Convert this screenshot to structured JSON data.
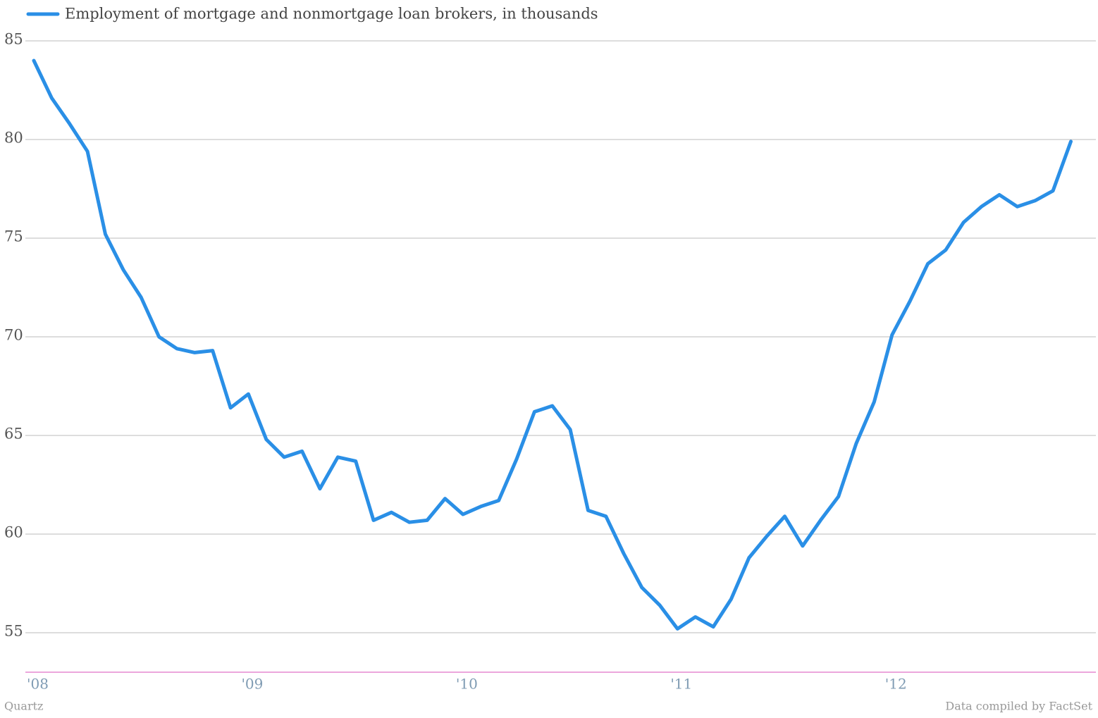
{
  "chart_data": {
    "type": "line",
    "series": [
      {
        "name": "Employment of mortgage and nonmortgage loan brokers, in thousands",
        "color": "#2a8fe6",
        "values": [
          84.0,
          82.1,
          80.8,
          79.4,
          75.2,
          73.4,
          72.0,
          70.0,
          69.4,
          69.2,
          69.3,
          66.4,
          67.1,
          64.8,
          63.9,
          64.2,
          62.3,
          63.9,
          63.7,
          60.7,
          61.1,
          60.6,
          60.7,
          61.8,
          61.0,
          61.4,
          61.7,
          63.8,
          66.2,
          66.5,
          65.3,
          61.2,
          60.9,
          59.0,
          57.3,
          56.4,
          55.2,
          55.8,
          55.3,
          56.7,
          58.8,
          59.9,
          60.9,
          59.4,
          60.7,
          61.9,
          64.6,
          66.7,
          70.1,
          71.8,
          73.7,
          74.4,
          75.8,
          76.6,
          77.2,
          76.6,
          76.9,
          77.4,
          79.9
        ]
      }
    ],
    "categories": [
      "'08",
      null,
      null,
      null,
      null,
      null,
      null,
      null,
      null,
      null,
      null,
      null,
      "'09",
      null,
      null,
      null,
      null,
      null,
      null,
      null,
      null,
      null,
      null,
      null,
      "'10",
      null,
      null,
      null,
      null,
      null,
      null,
      null,
      null,
      null,
      null,
      null,
      "'11",
      null,
      null,
      null,
      null,
      null,
      null,
      null,
      null,
      null,
      null,
      null,
      "'12",
      null,
      null,
      null,
      null,
      null,
      null,
      null,
      null,
      null,
      null
    ],
    "ylim": [
      53,
      87
    ],
    "yticks": [
      55,
      60,
      65,
      70,
      75,
      80,
      85
    ],
    "grid": true,
    "source": "Data compiled by FactSet",
    "credit": "Quartz"
  }
}
